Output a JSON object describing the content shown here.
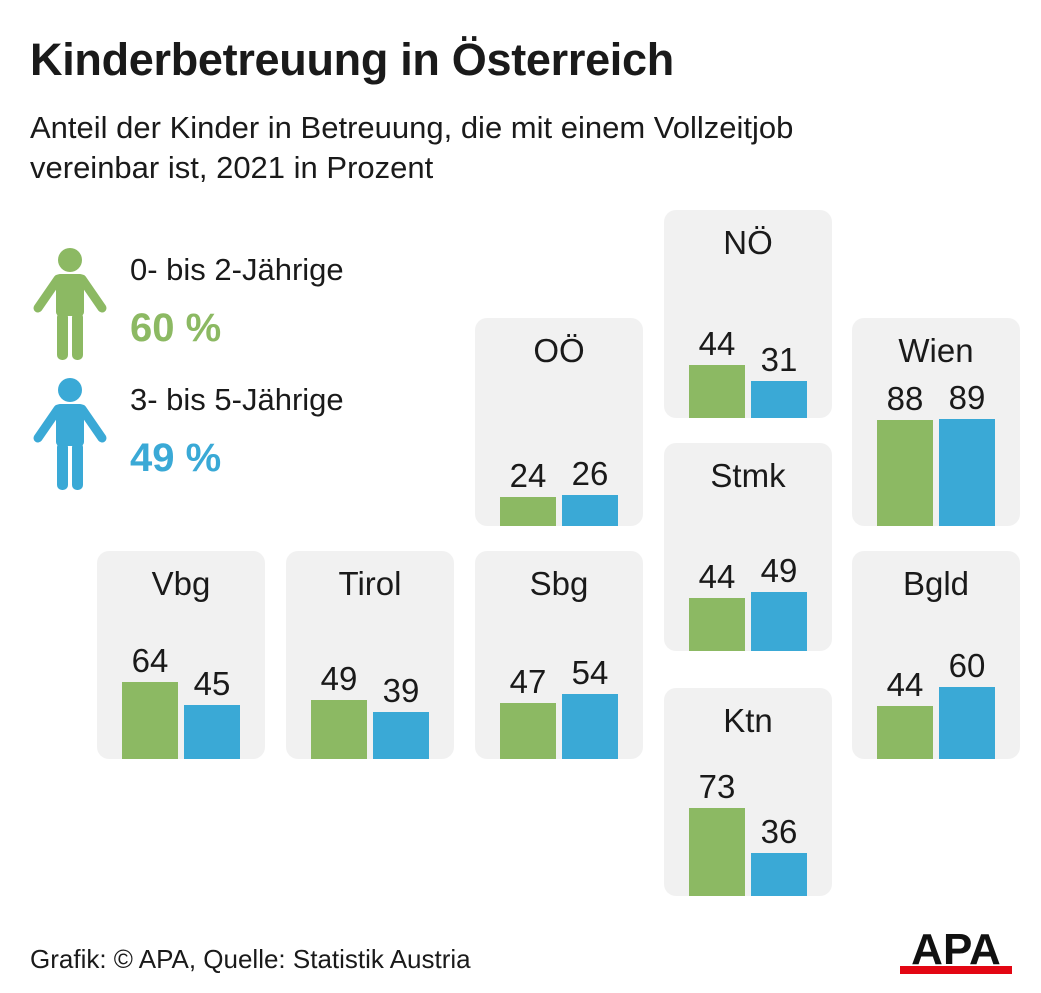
{
  "title": "Kinderbetreuung in Österreich",
  "subtitle": "Anteil der Kinder in Betreuung, die mit einem Vollzeitjob vereinbar ist, 2021 in Prozent",
  "legend": [
    {
      "label": "0- bis 2-Jährige",
      "value": "60 %",
      "color": "#8cb963",
      "icon": "person-icon"
    },
    {
      "label": "3- bis 5-Jährige",
      "value": "49 %",
      "color": "#3aa9d6",
      "icon": "person-icon"
    }
  ],
  "footer": "Grafik: © APA, Quelle: Statistik Austria",
  "logo": {
    "text": "APA",
    "accent": "#e30613"
  },
  "chart_data": {
    "type": "bar",
    "series": [
      {
        "name": "0- bis 2-Jährige",
        "color": "#8cb963"
      },
      {
        "name": "3- bis 5-Jährige",
        "color": "#3aa9d6"
      }
    ],
    "regions": [
      {
        "name": "Vbg",
        "values": [
          64,
          45
        ]
      },
      {
        "name": "Tirol",
        "values": [
          49,
          39
        ]
      },
      {
        "name": "OÖ",
        "values": [
          24,
          26
        ]
      },
      {
        "name": "Sbg",
        "values": [
          47,
          54
        ]
      },
      {
        "name": "NÖ",
        "values": [
          44,
          31
        ]
      },
      {
        "name": "Stmk",
        "values": [
          44,
          49
        ]
      },
      {
        "name": "Ktn",
        "values": [
          73,
          36
        ]
      },
      {
        "name": "Wien",
        "values": [
          88,
          89
        ]
      },
      {
        "name": "Bgld",
        "values": [
          44,
          60
        ]
      }
    ]
  }
}
